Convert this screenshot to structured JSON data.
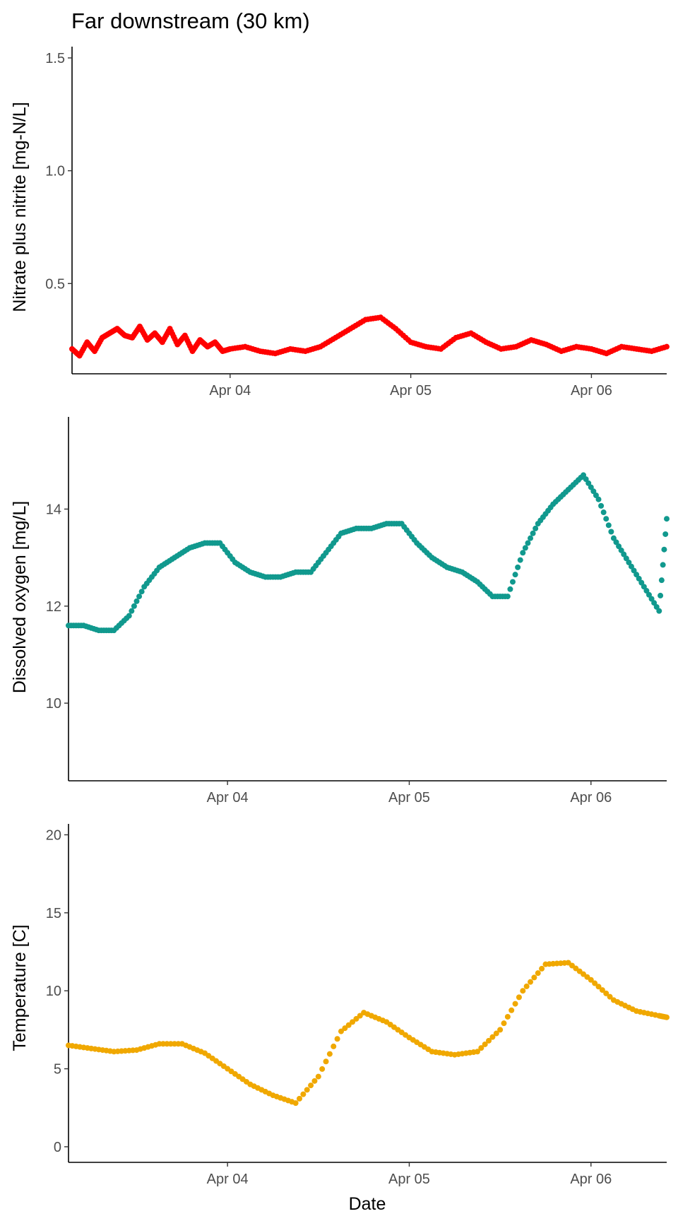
{
  "figure_title": "Far downstream (30 km)",
  "chart_data": [
    {
      "type": "scatter",
      "title": "Far downstream (30 km)",
      "ylabel": "Nitrate plus nitrite [mg-N/L]",
      "xlabel": "",
      "xlim": [
        "2024-04-03T03:00",
        "2024-04-06T10:00"
      ],
      "ylim": [
        0.1,
        1.55
      ],
      "yticks": [
        0.5,
        1.0,
        1.5
      ],
      "ytick_labels": [
        "0.5",
        "1.0",
        "1.5"
      ],
      "xticks": [
        "2024-04-04T00:00",
        "2024-04-05T00:00",
        "2024-04-06T00:00"
      ],
      "xtick_labels": [
        "Apr 04",
        "Apr 05",
        "Apr 06"
      ],
      "grid": false,
      "color": "#ff0000",
      "series": [
        {
          "x": [
            "2024-04-03T03:00",
            "2024-04-03T04:00",
            "2024-04-03T05:00",
            "2024-04-03T06:00",
            "2024-04-03T07:00",
            "2024-04-03T08:00",
            "2024-04-03T09:00",
            "2024-04-03T10:00",
            "2024-04-03T11:00",
            "2024-04-03T12:00",
            "2024-04-03T13:00",
            "2024-04-03T14:00",
            "2024-04-03T15:00",
            "2024-04-03T16:00",
            "2024-04-03T17:00",
            "2024-04-03T18:00",
            "2024-04-03T19:00",
            "2024-04-03T20:00",
            "2024-04-03T21:00",
            "2024-04-03T22:00",
            "2024-04-03T23:00",
            "2024-04-04T00:00",
            "2024-04-04T02:00",
            "2024-04-04T04:00",
            "2024-04-04T06:00",
            "2024-04-04T08:00",
            "2024-04-04T10:00",
            "2024-04-04T12:00",
            "2024-04-04T14:00",
            "2024-04-04T16:00",
            "2024-04-04T18:00",
            "2024-04-04T20:00",
            "2024-04-04T22:00",
            "2024-04-05T00:00",
            "2024-04-05T02:00",
            "2024-04-05T04:00",
            "2024-04-05T06:00",
            "2024-04-05T08:00",
            "2024-04-05T10:00",
            "2024-04-05T12:00",
            "2024-04-05T14:00",
            "2024-04-05T16:00",
            "2024-04-05T18:00",
            "2024-04-05T20:00",
            "2024-04-05T22:00",
            "2024-04-06T00:00",
            "2024-04-06T02:00",
            "2024-04-06T04:00",
            "2024-04-06T06:00",
            "2024-04-06T08:00",
            "2024-04-06T10:00"
          ],
          "y": [
            0.21,
            0.18,
            0.24,
            0.2,
            0.26,
            0.28,
            0.3,
            0.27,
            0.26,
            0.31,
            0.25,
            0.28,
            0.24,
            0.3,
            0.23,
            0.27,
            0.2,
            0.25,
            0.22,
            0.24,
            0.2,
            0.21,
            0.22,
            0.2,
            0.19,
            0.21,
            0.2,
            0.22,
            0.26,
            0.3,
            0.34,
            0.35,
            0.3,
            0.24,
            0.22,
            0.21,
            0.26,
            0.28,
            0.24,
            0.21,
            0.22,
            0.25,
            0.23,
            0.2,
            0.22,
            0.21,
            0.19,
            0.22,
            0.21,
            0.2,
            0.22
          ]
        }
      ]
    },
    {
      "type": "scatter",
      "title": "",
      "ylabel": "Dissolved oxygen [mg/L]",
      "xlabel": "",
      "xlim": [
        "2024-04-03T03:00",
        "2024-04-06T10:00"
      ],
      "ylim": [
        8.4,
        15.9
      ],
      "yticks": [
        10,
        12,
        14
      ],
      "ytick_labels": [
        "10",
        "12",
        "14"
      ],
      "xticks": [
        "2024-04-04T00:00",
        "2024-04-05T00:00",
        "2024-04-06T00:00"
      ],
      "xtick_labels": [
        "Apr 04",
        "Apr 05",
        "Apr 06"
      ],
      "grid": false,
      "color": "#11998e",
      "series": [
        {
          "x": [
            "2024-04-03T03:00",
            "2024-04-03T05:00",
            "2024-04-03T07:00",
            "2024-04-03T09:00",
            "2024-04-03T11:00",
            "2024-04-03T13:00",
            "2024-04-03T15:00",
            "2024-04-03T17:00",
            "2024-04-03T19:00",
            "2024-04-03T21:00",
            "2024-04-03T23:00",
            "2024-04-04T01:00",
            "2024-04-04T03:00",
            "2024-04-04T05:00",
            "2024-04-04T07:00",
            "2024-04-04T09:00",
            "2024-04-04T11:00",
            "2024-04-04T13:00",
            "2024-04-04T15:00",
            "2024-04-04T17:00",
            "2024-04-04T19:00",
            "2024-04-04T21:00",
            "2024-04-04T23:00",
            "2024-04-05T01:00",
            "2024-04-05T03:00",
            "2024-04-05T05:00",
            "2024-04-05T07:00",
            "2024-04-05T09:00",
            "2024-04-05T11:00",
            "2024-04-05T13:00",
            "2024-04-05T15:00",
            "2024-04-05T17:00",
            "2024-04-05T19:00",
            "2024-04-05T21:00",
            "2024-04-05T23:00",
            "2024-04-06T01:00",
            "2024-04-06T03:00",
            "2024-04-06T05:00",
            "2024-04-06T07:00",
            "2024-04-06T09:00",
            "2024-04-06T10:00"
          ],
          "y": [
            11.6,
            11.6,
            11.5,
            11.5,
            11.8,
            12.4,
            12.8,
            13.0,
            13.2,
            13.3,
            13.3,
            12.9,
            12.7,
            12.6,
            12.6,
            12.7,
            12.7,
            13.1,
            13.5,
            13.6,
            13.6,
            13.7,
            13.7,
            13.3,
            13.0,
            12.8,
            12.7,
            12.5,
            12.2,
            12.2,
            13.1,
            13.7,
            14.1,
            14.4,
            14.7,
            14.2,
            13.4,
            12.9,
            12.4,
            11.9,
            13.8
          ]
        }
      ]
    },
    {
      "type": "scatter",
      "title": "",
      "ylabel": "Temperature [C]",
      "xlabel": "Date",
      "xlim": [
        "2024-04-03T03:00",
        "2024-04-06T10:00"
      ],
      "ylim": [
        -1.0,
        20.7
      ],
      "yticks": [
        0,
        5,
        10,
        15,
        20
      ],
      "ytick_labels": [
        "0",
        "5",
        "10",
        "15",
        "20"
      ],
      "xticks": [
        "2024-04-04T00:00",
        "2024-04-05T00:00",
        "2024-04-06T00:00"
      ],
      "xtick_labels": [
        "Apr 04",
        "Apr 05",
        "Apr 06"
      ],
      "grid": false,
      "color": "#f0a800",
      "series": [
        {
          "x": [
            "2024-04-03T03:00",
            "2024-04-03T06:00",
            "2024-04-03T09:00",
            "2024-04-03T12:00",
            "2024-04-03T15:00",
            "2024-04-03T18:00",
            "2024-04-03T21:00",
            "2024-04-04T00:00",
            "2024-04-04T03:00",
            "2024-04-04T06:00",
            "2024-04-04T09:00",
            "2024-04-04T12:00",
            "2024-04-04T15:00",
            "2024-04-04T18:00",
            "2024-04-04T21:00",
            "2024-04-05T00:00",
            "2024-04-05T03:00",
            "2024-04-05T06:00",
            "2024-04-05T09:00",
            "2024-04-05T12:00",
            "2024-04-05T15:00",
            "2024-04-05T18:00",
            "2024-04-05T21:00",
            "2024-04-06T00:00",
            "2024-04-06T03:00",
            "2024-04-06T06:00",
            "2024-04-06T09:00",
            "2024-04-06T10:00"
          ],
          "y": [
            6.5,
            6.3,
            6.1,
            6.2,
            6.6,
            6.6,
            6.0,
            5.0,
            4.0,
            3.3,
            2.8,
            4.5,
            7.4,
            8.6,
            8.0,
            7.0,
            6.1,
            5.9,
            6.1,
            7.5,
            10.0,
            11.7,
            11.8,
            10.7,
            9.4,
            8.7,
            8.4,
            8.3
          ]
        }
      ]
    }
  ]
}
